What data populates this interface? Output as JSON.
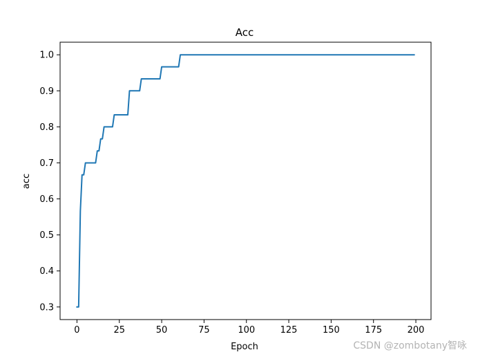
{
  "chart_data": {
    "type": "line",
    "title": "Acc",
    "xlabel": "Epoch",
    "ylabel": "acc",
    "xlim": [
      -9.95,
      208.95
    ],
    "ylim": [
      0.265,
      1.035
    ],
    "xticks": [
      0,
      25,
      50,
      75,
      100,
      125,
      150,
      175,
      200
    ],
    "yticks": [
      0.3,
      0.4,
      0.5,
      0.6,
      0.7,
      0.8,
      0.9,
      1.0
    ],
    "xtick_labels": [
      "0",
      "25",
      "50",
      "75",
      "100",
      "125",
      "150",
      "175",
      "200"
    ],
    "ytick_labels": [
      "0.3",
      "0.4",
      "0.5",
      "0.6",
      "0.7",
      "0.8",
      "0.9",
      "1.0"
    ],
    "grid": false,
    "legend": false,
    "series": [
      {
        "color": "#1f77b4",
        "points": [
          [
            0,
            0.3
          ],
          [
            1,
            0.3
          ],
          [
            2,
            0.5667
          ],
          [
            3,
            0.6667
          ],
          [
            4,
            0.6667
          ],
          [
            5,
            0.7
          ],
          [
            6,
            0.7
          ],
          [
            7,
            0.7
          ],
          [
            8,
            0.7
          ],
          [
            9,
            0.7
          ],
          [
            10,
            0.7
          ],
          [
            11,
            0.7
          ],
          [
            12,
            0.7333
          ],
          [
            13,
            0.7333
          ],
          [
            14,
            0.7667
          ],
          [
            15,
            0.7667
          ],
          [
            16,
            0.8
          ],
          [
            17,
            0.8
          ],
          [
            18,
            0.8
          ],
          [
            19,
            0.8
          ],
          [
            20,
            0.8
          ],
          [
            21,
            0.8
          ],
          [
            22,
            0.8333
          ],
          [
            23,
            0.8333
          ],
          [
            24,
            0.8333
          ],
          [
            25,
            0.8333
          ],
          [
            26,
            0.8333
          ],
          [
            27,
            0.8333
          ],
          [
            28,
            0.8333
          ],
          [
            29,
            0.8333
          ],
          [
            30,
            0.8333
          ],
          [
            31,
            0.9
          ],
          [
            32,
            0.9
          ],
          [
            33,
            0.9
          ],
          [
            34,
            0.9
          ],
          [
            35,
            0.9
          ],
          [
            36,
            0.9
          ],
          [
            37,
            0.9
          ],
          [
            38,
            0.9333
          ],
          [
            39,
            0.9333
          ],
          [
            40,
            0.9333
          ],
          [
            41,
            0.9333
          ],
          [
            42,
            0.9333
          ],
          [
            43,
            0.9333
          ],
          [
            44,
            0.9333
          ],
          [
            45,
            0.9333
          ],
          [
            46,
            0.9333
          ],
          [
            47,
            0.9333
          ],
          [
            48,
            0.9333
          ],
          [
            49,
            0.9333
          ],
          [
            50,
            0.9667
          ],
          [
            51,
            0.9667
          ],
          [
            52,
            0.9667
          ],
          [
            53,
            0.9667
          ],
          [
            54,
            0.9667
          ],
          [
            55,
            0.9667
          ],
          [
            56,
            0.9667
          ],
          [
            57,
            0.9667
          ],
          [
            58,
            0.9667
          ],
          [
            59,
            0.9667
          ],
          [
            60,
            0.9667
          ],
          [
            61,
            1.0
          ],
          [
            80,
            1.0
          ],
          [
            100,
            1.0
          ],
          [
            120,
            1.0
          ],
          [
            140,
            1.0
          ],
          [
            160,
            1.0
          ],
          [
            180,
            1.0
          ],
          [
            199,
            1.0
          ]
        ]
      }
    ]
  },
  "watermark": "CSDN @zombotany智咏"
}
